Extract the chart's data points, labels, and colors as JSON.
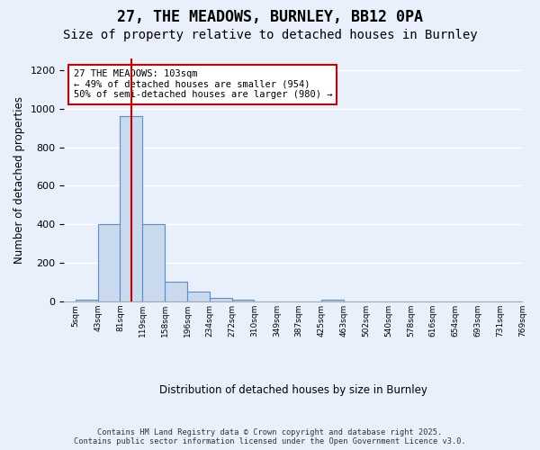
{
  "title": "27, THE MEADOWS, BURNLEY, BB12 0PA",
  "subtitle": "Size of property relative to detached houses in Burnley",
  "xlabel": "Distribution of detached houses by size in Burnley",
  "ylabel": "Number of detached properties",
  "bin_labels": [
    "5sqm",
    "43sqm",
    "81sqm",
    "119sqm",
    "158sqm",
    "196sqm",
    "234sqm",
    "272sqm",
    "310sqm",
    "349sqm",
    "387sqm",
    "425sqm",
    "463sqm",
    "502sqm",
    "540sqm",
    "578sqm",
    "616sqm",
    "654sqm",
    "693sqm",
    "731sqm",
    "769sqm"
  ],
  "bar_values": [
    10,
    400,
    960,
    400,
    105,
    50,
    20,
    10,
    0,
    0,
    0,
    10,
    0,
    0,
    0,
    0,
    0,
    0,
    0,
    0
  ],
  "bar_color": "#c9d9ee",
  "bar_edge_color": "#5b8fc7",
  "red_line_x": 2.5,
  "annotation_text": "27 THE MEADOWS: 103sqm\n← 49% of detached houses are smaller (954)\n50% of semi-detached houses are larger (980) →",
  "annotation_box_color": "#ffffff",
  "annotation_box_edge_color": "#cc0000",
  "ylim": [
    0,
    1260
  ],
  "yticks": [
    0,
    200,
    400,
    600,
    800,
    1000,
    1200
  ],
  "background_color": "#eaf0fb",
  "grid_color": "#ffffff",
  "footer_line1": "Contains HM Land Registry data © Crown copyright and database right 2025.",
  "footer_line2": "Contains public sector information licensed under the Open Government Licence v3.0.",
  "title_fontsize": 12,
  "subtitle_fontsize": 10
}
